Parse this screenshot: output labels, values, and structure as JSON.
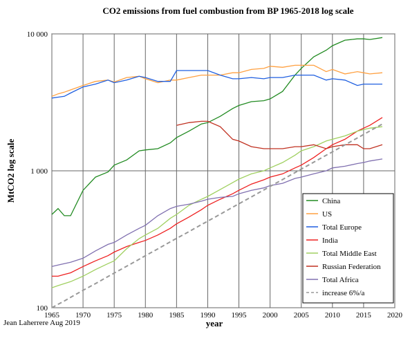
{
  "chart_data": {
    "type": "line",
    "title": "CO2 emissions from fuel combustion from BP 1965-2018 log scale",
    "y_label": "MtCO2 log scale",
    "x_label": "year",
    "annotation": "Jean Laherrere  Aug 2019",
    "log_y": true,
    "grid": true,
    "legend": "lower right",
    "xlim": [
      1965,
      2020
    ],
    "xticks": [
      1965,
      1970,
      1975,
      1980,
      1985,
      1990,
      1995,
      2000,
      2005,
      2010,
      2015,
      2020
    ],
    "ylim": [
      100,
      10000
    ],
    "yticks": [
      100,
      {
        "value": 1000,
        "label": "1 000"
      },
      {
        "value": 10000,
        "label": "10 000"
      }
    ],
    "x": [
      1965,
      1966,
      1967,
      1968,
      1970,
      1972,
      1974,
      1975,
      1977,
      1979,
      1980,
      1982,
      1984,
      1985,
      1987,
      1989,
      1990,
      1992,
      1994,
      1995,
      1997,
      1999,
      2000,
      2002,
      2004,
      2005,
      2007,
      2009,
      2010,
      2012,
      2014,
      2015,
      2016,
      2018
    ],
    "series": [
      {
        "name": "China",
        "color": "#228b22",
        "values": [
          480,
          530,
          470,
          470,
          720,
          900,
          980,
          1100,
          1200,
          1400,
          1420,
          1450,
          1600,
          1750,
          1950,
          2200,
          2250,
          2500,
          2850,
          3000,
          3200,
          3250,
          3350,
          3800,
          5000,
          5600,
          6800,
          7600,
          8200,
          9000,
          9200,
          9200,
          9100,
          9400
        ]
      },
      {
        "name": "US",
        "color": "#ffa040",
        "values": [
          3500,
          3650,
          3750,
          3900,
          4200,
          4500,
          4600,
          4450,
          4800,
          4900,
          4700,
          4400,
          4600,
          4600,
          4800,
          5000,
          5000,
          5000,
          5200,
          5200,
          5500,
          5600,
          5800,
          5700,
          5900,
          5900,
          5900,
          5300,
          5500,
          5100,
          5300,
          5200,
          5100,
          5200
        ]
      },
      {
        "name": "Total Europe",
        "color": "#1f5fe0",
        "values": [
          3400,
          3450,
          3500,
          3700,
          4100,
          4300,
          4600,
          4400,
          4600,
          4900,
          4800,
          4500,
          4500,
          5400,
          5400,
          5400,
          5400,
          5000,
          4700,
          4700,
          4800,
          4700,
          4800,
          4800,
          5000,
          5000,
          5000,
          4600,
          4700,
          4600,
          4200,
          4300,
          4300,
          4300
        ]
      },
      {
        "name": "India",
        "color": "#ee2020",
        "values": [
          170,
          170,
          175,
          180,
          200,
          220,
          240,
          255,
          280,
          300,
          310,
          340,
          380,
          410,
          460,
          520,
          560,
          620,
          680,
          720,
          800,
          860,
          900,
          950,
          1050,
          1100,
          1250,
          1450,
          1550,
          1700,
          1950,
          2050,
          2150,
          2450
        ]
      },
      {
        "name": "Total Middle East",
        "color": "#a0d060",
        "values": [
          140,
          145,
          150,
          155,
          170,
          190,
          210,
          220,
          270,
          320,
          340,
          380,
          450,
          480,
          560,
          620,
          650,
          730,
          820,
          870,
          950,
          1000,
          1050,
          1150,
          1300,
          1400,
          1500,
          1650,
          1700,
          1800,
          1950,
          2000,
          2050,
          2100
        ]
      },
      {
        "name": "Russian Federation",
        "color": "#c03020",
        "values": [
          null,
          null,
          null,
          null,
          null,
          null,
          null,
          null,
          null,
          null,
          null,
          null,
          null,
          2150,
          2250,
          2300,
          2300,
          2100,
          1700,
          1650,
          1500,
          1450,
          1450,
          1450,
          1500,
          1500,
          1550,
          1450,
          1500,
          1550,
          1550,
          1450,
          1450,
          1550
        ]
      },
      {
        "name": "Total Africa",
        "color": "#8070b0",
        "values": [
          200,
          205,
          210,
          215,
          230,
          260,
          290,
          300,
          340,
          380,
          400,
          470,
          530,
          550,
          570,
          600,
          620,
          640,
          650,
          680,
          720,
          750,
          780,
          810,
          880,
          900,
          950,
          1000,
          1050,
          1080,
          1130,
          1150,
          1180,
          1220
        ]
      },
      {
        "name": "increase 6%/a",
        "color": "#999999",
        "linestyle": "dashed",
        "values": [
          100,
          106,
          112,
          119,
          134,
          150,
          169,
          179,
          201,
          226,
          240,
          269,
          303,
          321,
          360,
          405,
          429,
          482,
          542,
          574,
          645,
          725,
          769,
          864,
          970,
          1029,
          1156,
          1299,
          1376,
          1547,
          1738,
          1842,
          1953,
          2194
        ]
      }
    ]
  }
}
